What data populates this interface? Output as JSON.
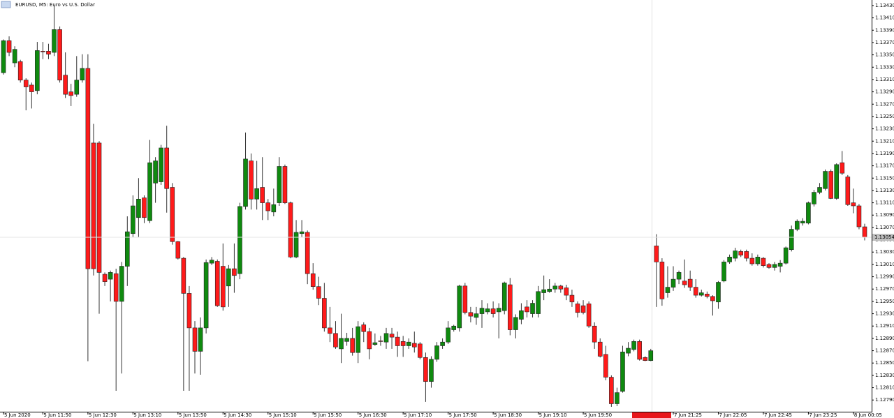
{
  "chart_data": {
    "type": "candlestick",
    "title": "EURUSD, M5: Euro vs U.S. Dollar",
    "up_color": "#0f8a0f",
    "down_color": "#ff1a1a",
    "categories": [
      "5 Jun 2020",
      null,
      null,
      null,
      null,
      null,
      null,
      "5 Jun 11:50",
      null,
      null,
      null,
      null,
      null,
      null,
      null,
      "5 Jun 12:30",
      null,
      null,
      null,
      null,
      null,
      null,
      null,
      "5 Jun 13:10",
      null,
      null,
      null,
      null,
      null,
      null,
      null,
      "5 Jun 13:50",
      null,
      null,
      null,
      null,
      null,
      null,
      null,
      "5 Jun 14:30",
      null,
      null,
      null,
      null,
      null,
      null,
      null,
      "5 Jun 15:10",
      null,
      null,
      null,
      null,
      null,
      null,
      null,
      "5 Jun 15:50",
      null,
      null,
      null,
      null,
      null,
      null,
      null,
      "5 Jun 16:30",
      null,
      null,
      null,
      null,
      null,
      null,
      null,
      "5 Jun 17:10",
      null,
      null,
      null,
      null,
      null,
      null,
      null,
      "5 Jun 17:50",
      null,
      null,
      null,
      null,
      null,
      null,
      null,
      "5 Jun 18:30",
      null,
      null,
      null,
      null,
      null,
      null,
      null,
      "5 Jun 19:10",
      null,
      null,
      null,
      null,
      null,
      null,
      null,
      "5 Jun 19:50",
      null,
      null,
      null,
      null,
      null,
      null,
      null,
      null,
      null,
      null,
      null,
      null,
      null,
      null,
      null,
      "7 Jun 21:25",
      null,
      null,
      null,
      null,
      null,
      null,
      null,
      "7 Jun 22:05",
      null,
      null,
      null,
      null,
      null,
      null,
      null,
      "7 Jun 22:45",
      null,
      null,
      null,
      null,
      null,
      null,
      null,
      "7 Jun 23:25",
      null,
      null,
      null,
      null,
      null,
      null,
      null,
      "8 Jun 00:05",
      null,
      null
    ],
    "open": [
      1.13321,
      1.13373,
      1.13337,
      1.13339,
      1.13309,
      1.13301,
      1.13292,
      1.13356,
      1.13356,
      1.13354,
      1.13391,
      1.13317,
      1.1329,
      1.13286,
      1.13309,
      1.13328,
      1.13207,
      1.13207,
      1.12994,
      1.12986,
      1.12995,
      1.1295,
      1.13007,
      1.1306,
      1.13086,
      1.13118,
      1.13081,
      1.13142,
      1.13144,
      1.13199,
      1.13135,
      1.13047,
      1.1302,
      1.12963,
      1.12907,
      1.12869,
      1.12907,
      1.13012,
      1.13015,
      1.13007,
      1.12975,
      1.13003,
      1.12995,
      1.13104,
      1.13178,
      1.13116,
      1.13135,
      1.1311,
      1.13095,
      1.1311,
      1.13169,
      1.1311,
      1.13022,
      1.1306,
      1.13062,
      1.12995,
      1.12974,
      1.12955,
      1.12907,
      1.12898,
      1.12873,
      1.12885,
      1.1289,
      1.12867,
      1.12912,
      1.12901,
      1.1288,
      1.12886,
      1.12884,
      1.12897,
      1.12892,
      1.12885,
      1.12878,
      1.12882,
      1.12881,
      1.12859,
      1.1282,
      1.12856,
      1.12878,
      1.12884,
      1.12904,
      1.12907,
      1.12975,
      1.12932,
      1.12924,
      1.1293,
      1.12933,
      1.12938,
      1.12933,
      1.12935,
      1.12977,
      1.12904,
      1.12921,
      1.12941,
      1.1293,
      1.1293,
      1.12964,
      1.12966,
      1.1297,
      1.12975,
      1.12972,
      1.1296,
      1.12946,
      1.12943,
      1.12946,
      1.1291,
      1.12884,
      1.12864,
      1.12827,
      1.12784,
      1.12804,
      1.12866,
      1.12872,
      1.12885,
      1.12859,
      1.12854,
      1.1304,
      1.13014,
      1.12964,
      1.12973,
      1.12986,
      1.12983,
      1.12986,
      1.12973,
      1.1296,
      1.12962,
      1.12958,
      1.12949,
      1.12983,
      1.13014,
      1.1302,
      1.13031,
      1.13031,
      1.1302,
      1.13011,
      1.1302,
      1.1301,
      1.13005,
      1.13007,
      1.13012,
      1.13034,
      1.13067,
      1.13077,
      1.13077,
      1.13108,
      1.13127,
      1.13133,
      1.13161,
      1.13117,
      1.13175,
      1.13152,
      1.1311,
      1.13105,
      1.13071
    ],
    "high": [
      1.13375,
      1.1338,
      1.13364,
      1.13342,
      1.13312,
      1.13305,
      1.13371,
      1.13371,
      1.13368,
      1.1343,
      1.13396,
      1.13354,
      1.13303,
      1.13348,
      1.13351,
      1.13351,
      1.13238,
      1.1321,
      1.12997,
      1.13,
      1.13003,
      1.13014,
      1.13088,
      1.13122,
      1.1315,
      1.13122,
      1.13212,
      1.13184,
      1.13204,
      1.13235,
      1.13142,
      1.13048,
      1.13022,
      1.12975,
      1.12918,
      1.12924,
      1.13018,
      1.13022,
      1.13018,
      1.13044,
      1.13009,
      1.13044,
      1.1311,
      1.13224,
      1.1319,
      1.13178,
      1.13184,
      1.13116,
      1.13133,
      1.13184,
      1.13172,
      1.13112,
      1.13082,
      1.13082,
      1.13065,
      1.13012,
      1.1299,
      1.1298,
      1.12941,
      1.12918,
      1.1293,
      1.12899,
      1.12907,
      1.12918,
      1.12916,
      1.12907,
      1.12898,
      1.12894,
      1.12907,
      1.12907,
      1.12901,
      1.12894,
      1.1289,
      1.12901,
      1.12884,
      1.12867,
      1.12861,
      1.12884,
      1.1289,
      1.12918,
      1.12912,
      1.12977,
      1.1298,
      1.12941,
      1.12941,
      1.12952,
      1.12947,
      1.1295,
      1.12947,
      1.12982,
      1.12988,
      1.12929,
      1.12947,
      1.12952,
      1.12952,
      1.12975,
      1.12992,
      1.12986,
      1.1298,
      1.12977,
      1.12977,
      1.12969,
      1.1295,
      1.12952,
      1.1295,
      1.12916,
      1.1289,
      1.12878,
      1.1283,
      1.1281,
      1.12878,
      1.12884,
      1.12888,
      1.12888,
      1.12861,
      1.12873,
      1.13059,
      1.1302,
      1.13007,
      1.13007,
      1.13,
      1.13018,
      1.13,
      1.12986,
      1.12969,
      1.12966,
      1.1296,
      1.12983,
      1.13017,
      1.13026,
      1.13037,
      1.13034,
      1.13034,
      1.13028,
      1.13026,
      1.13022,
      1.13012,
      1.13014,
      1.13017,
      1.13039,
      1.13073,
      1.13083,
      1.13085,
      1.13112,
      1.13131,
      1.13142,
      1.13164,
      1.13164,
      1.13174,
      1.13194,
      1.13155,
      1.13133,
      1.13108,
      1.13076
    ],
    "low": [
      1.13318,
      1.13348,
      1.1333,
      1.13305,
      1.1326,
      1.13263,
      1.13286,
      1.13343,
      1.13343,
      1.13348,
      1.13305,
      1.1328,
      1.13267,
      1.13282,
      1.13305,
      1.12853,
      1.12992,
      1.1293,
      1.12975,
      1.1295,
      1.12805,
      1.12833,
      1.12975,
      1.13054,
      1.13054,
      1.13077,
      1.13077,
      1.1311,
      1.13139,
      1.13094,
      1.13042,
      1.13018,
      1.12805,
      1.12805,
      1.12833,
      1.12831,
      1.12898,
      1.13009,
      1.12941,
      1.12935,
      1.12941,
      1.12964,
      1.12986,
      1.13099,
      1.13099,
      1.13099,
      1.13082,
      1.13082,
      1.13088,
      1.13105,
      1.13108,
      1.1302,
      1.1302,
      1.13054,
      1.12978,
      1.12969,
      1.12944,
      1.12901,
      1.12884,
      1.12873,
      1.1285,
      1.12878,
      1.12862,
      1.1285,
      1.12884,
      1.12856,
      1.12878,
      1.12878,
      1.12873,
      1.12873,
      1.1286,
      1.1286,
      1.12873,
      1.12867,
      1.12856,
      1.12787,
      1.1281,
      1.12852,
      1.12873,
      1.12881,
      1.12901,
      1.12901,
      1.12929,
      1.12916,
      1.12912,
      1.12907,
      1.12929,
      1.12924,
      1.1289,
      1.12929,
      1.12895,
      1.1289,
      1.12913,
      1.12924,
      1.12924,
      1.12924,
      1.12952,
      1.12964,
      1.12964,
      1.12964,
      1.12952,
      1.12941,
      1.12924,
      1.12929,
      1.12907,
      1.12873,
      1.12859,
      1.12822,
      1.12779,
      1.1278,
      1.12802,
      1.12861,
      1.12869,
      1.12854,
      1.12853,
      1.12853,
      1.12941,
      1.12943,
      1.12956,
      1.12967,
      1.12978,
      1.12972,
      1.12967,
      1.12956,
      1.12958,
      1.12955,
      1.12927,
      1.12938,
      1.12981,
      1.13011,
      1.13015,
      1.13022,
      1.13015,
      1.13008,
      1.13008,
      1.13005,
      1.13003,
      1.13,
      1.12997,
      1.1301,
      1.13031,
      1.13064,
      1.13073,
      1.13075,
      1.13104,
      1.13124,
      1.1313,
      1.13116,
      1.13115,
      1.13155,
      1.13105,
      1.13093,
      1.13067,
      1.13049
    ],
    "close": [
      1.13373,
      1.13354,
      1.13359,
      1.13309,
      1.13298,
      1.1329,
      1.13357,
      1.13355,
      1.13351,
      1.13391,
      1.13309,
      1.13286,
      1.13284,
      1.13309,
      1.13328,
      1.13003,
      1.13003,
      1.12997,
      1.12982,
      1.12997,
      1.1295,
      1.13007,
      1.13063,
      1.13105,
      1.13116,
      1.13086,
      1.13175,
      1.13178,
      1.13199,
      1.13133,
      1.13047,
      1.1302,
      1.12963,
      1.12907,
      1.12869,
      1.12907,
      1.13013,
      1.13017,
      1.12943,
      1.12941,
      1.13003,
      1.12992,
      1.13104,
      1.13181,
      1.13116,
      1.13133,
      1.1311,
      1.13097,
      1.13107,
      1.13169,
      1.1311,
      1.13022,
      1.13062,
      1.13063,
      1.12995,
      1.12974,
      1.12955,
      1.12907,
      1.12898,
      1.12876,
      1.1289,
      1.1289,
      1.12867,
      1.12909,
      1.12901,
      1.12873,
      1.12883,
      1.12885,
      1.12898,
      1.12892,
      1.12878,
      1.12878,
      1.12884,
      1.12876,
      1.12859,
      1.1282,
      1.12856,
      1.12878,
      1.12884,
      1.12907,
      1.1291,
      1.12975,
      1.12932,
      1.12926,
      1.1293,
      1.12939,
      1.12938,
      1.1293,
      1.12939,
      1.1298,
      1.12904,
      1.12924,
      1.12935,
      1.12933,
      1.12947,
      1.12966,
      1.12969,
      1.1297,
      1.12975,
      1.1297,
      1.1296,
      1.12949,
      1.12932,
      1.12932,
      1.1291,
      1.12884,
      1.12861,
      1.12827,
      1.12784,
      1.12802,
      1.12868,
      1.12874,
      1.12885,
      1.12856,
      1.12854,
      1.1287,
      1.13014,
      1.12954,
      1.12973,
      1.12986,
      1.12997,
      1.12977,
      1.12973,
      1.1296,
      1.12964,
      1.12958,
      1.12951,
      1.12981,
      1.13014,
      1.13022,
      1.13032,
      1.13025,
      1.1302,
      1.13011,
      1.13022,
      1.13008,
      1.13005,
      1.1301,
      1.13012,
      1.13037,
      1.13067,
      1.1308,
      1.1308,
      1.1311,
      1.13127,
      1.13135,
      1.13161,
      1.13117,
      1.13172,
      1.13158,
      1.13107,
      1.13105,
      1.13071,
      1.13054
    ],
    "ylim": [
      1.12771,
      1.13439
    ],
    "yticks": [
      {
        "value": 1.1343,
        "label": "1.13430"
      },
      {
        "value": 1.1341,
        "label": "1.13410"
      },
      {
        "value": 1.1339,
        "label": "1.13390"
      },
      {
        "value": 1.1337,
        "label": "1.13370"
      },
      {
        "value": 1.1335,
        "label": "1.13350"
      },
      {
        "value": 1.1333,
        "label": "1.13330"
      },
      {
        "value": 1.1331,
        "label": "1.13310"
      },
      {
        "value": 1.1329,
        "label": "1.13290"
      },
      {
        "value": 1.1327,
        "label": "1.13270"
      },
      {
        "value": 1.1325,
        "label": "1.13250"
      },
      {
        "value": 1.1323,
        "label": "1.13230"
      },
      {
        "value": 1.1321,
        "label": "1.13210"
      },
      {
        "value": 1.1319,
        "label": "1.13190"
      },
      {
        "value": 1.1317,
        "label": "1.13170"
      },
      {
        "value": 1.1315,
        "label": "1.13150"
      },
      {
        "value": 1.1313,
        "label": "1.13130"
      },
      {
        "value": 1.1311,
        "label": "1.13110"
      },
      {
        "value": 1.1309,
        "label": "1.13090"
      },
      {
        "value": 1.1307,
        "label": "1.13070"
      },
      {
        "value": 1.1305,
        "label": "1.13050"
      },
      {
        "value": 1.1303,
        "label": "1.13030"
      },
      {
        "value": 1.1301,
        "label": "1.13010"
      },
      {
        "value": 1.1299,
        "label": "1.12990"
      },
      {
        "value": 1.1297,
        "label": "1.12970"
      },
      {
        "value": 1.1295,
        "label": "1.12950"
      },
      {
        "value": 1.1293,
        "label": "1.12930"
      },
      {
        "value": 1.1291,
        "label": "1.12910"
      },
      {
        "value": 1.1289,
        "label": "1.12890"
      },
      {
        "value": 1.1287,
        "label": "1.12870"
      },
      {
        "value": 1.1285,
        "label": "1.12850"
      },
      {
        "value": 1.1283,
        "label": "1.12830"
      },
      {
        "value": 1.1281,
        "label": "1.12810"
      },
      {
        "value": 1.1279,
        "label": "1.12790"
      }
    ],
    "bid": 1.13054
  }
}
